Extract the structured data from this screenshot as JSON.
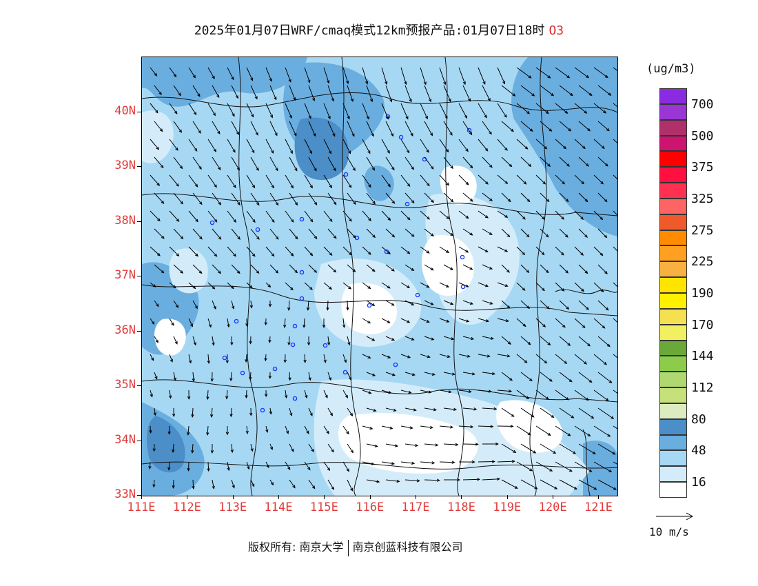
{
  "title": {
    "main": "2025年01月07日WRF/cmaq模式12km预报产品:01月07日18时",
    "species": "O3"
  },
  "map": {
    "lat_labels": [
      "40N",
      "39N",
      "38N",
      "37N",
      "36N",
      "35N",
      "34N",
      "33N"
    ],
    "lat_values": [
      40,
      39,
      38,
      37,
      36,
      35,
      34,
      33
    ],
    "lon_labels": [
      "111E",
      "112E",
      "113E",
      "114E",
      "115E",
      "116E",
      "117E",
      "118E",
      "119E",
      "120E",
      "121E"
    ],
    "lon_values": [
      111,
      112,
      113,
      114,
      115,
      116,
      117,
      118,
      119,
      120,
      121
    ],
    "lon_range": [
      111,
      121.4
    ],
    "lat_range": [
      33,
      41
    ]
  },
  "legend": {
    "unit": "(ug/m3)",
    "colors": [
      "#8a2be2",
      "#9a35d6",
      "#b0306a",
      "#cc1470",
      "#ff0000",
      "#ff1040",
      "#ff3050",
      "#ff6464",
      "#f05a2a",
      "#ff8c00",
      "#ffa020",
      "#f8b040",
      "#ffe400",
      "#fff000",
      "#f4e050",
      "#f0f060",
      "#6aa83a",
      "#8ccc4a",
      "#b0d870",
      "#c6e07a",
      "#dcecc0",
      "#4b8ec8",
      "#6aaee0",
      "#a6d8f4",
      "#d4ecfa",
      "#ffffff"
    ],
    "labels": [
      "700",
      "500",
      "375",
      "325",
      "275",
      "225",
      "190",
      "170",
      "144",
      "112",
      "80",
      "48",
      "16"
    ]
  },
  "reference_arrow": {
    "label": "10 m/s"
  },
  "footer": {
    "copyright_prefix": "版权所有:",
    "org1": "南京大学",
    "org2": "南京创蓝科技有限公司"
  },
  "colors": {
    "tick_label": "#e03a3a",
    "species": "#e02b2b",
    "low": "#ffffff",
    "level16": "#d4ecfa",
    "level32": "#a6d8f4",
    "level48": "#6aaee0",
    "level64": "#4b8ec8"
  }
}
